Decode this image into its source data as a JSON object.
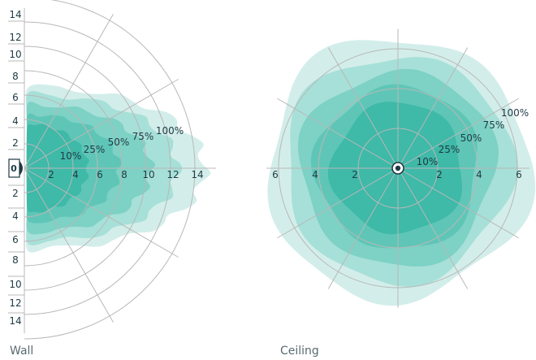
{
  "colors": {
    "z100": "#d3eeea",
    "z75": "#a7e0d8",
    "z50": "#7dd1c5",
    "z25": "#5fc6b7",
    "z10": "#3fb9a8",
    "grid": "#b8b8b8",
    "text": "#1f3a44"
  },
  "wall": {
    "caption": "Wall",
    "sensor_label": "0",
    "vertical_ticks_top": [
      "14",
      "12",
      "10",
      "8",
      "6",
      "4",
      "2"
    ],
    "vertical_ticks_bottom": [
      "2",
      "4",
      "6",
      "8",
      "10",
      "12",
      "14"
    ],
    "horizontal_ticks": [
      "2",
      "4",
      "6",
      "8",
      "10",
      "12",
      "14"
    ],
    "zone_labels": [
      "10%",
      "25%",
      "50%",
      "75%",
      "100%"
    ],
    "zones": [
      {
        "label": "100%",
        "reach": 14.8,
        "half_width": 6.6
      },
      {
        "label": "75%",
        "reach": 12.6,
        "half_width": 6.0
      },
      {
        "label": "50%",
        "reach": 10.4,
        "half_width": 5.2
      },
      {
        "label": "25%",
        "reach": 7.8,
        "half_width": 4.4
      },
      {
        "label": "10%",
        "reach": 5.2,
        "half_width": 3.6
      }
    ]
  },
  "ceiling": {
    "caption": "Ceiling",
    "horizontal_ticks_left": [
      "6",
      "4",
      "2"
    ],
    "horizontal_ticks_right": [
      "2",
      "4",
      "6"
    ],
    "zone_labels": [
      "10%",
      "25%",
      "50%",
      "75%",
      "100%"
    ],
    "zones": [
      {
        "label": "100%",
        "radius": 6.6
      },
      {
        "label": "75%",
        "radius": 5.7
      },
      {
        "label": "50%",
        "radius": 4.9
      },
      {
        "label": "25%",
        "radius": 4.1
      },
      {
        "label": "10%",
        "radius": 3.3
      }
    ]
  }
}
